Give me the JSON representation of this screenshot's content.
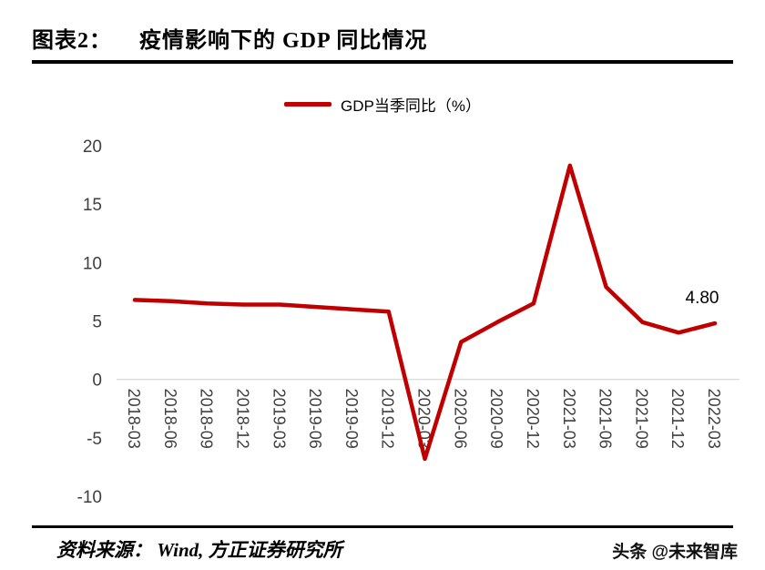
{
  "header": {
    "label": "图表2：",
    "title": "疫情影响下的 GDP 同比情况"
  },
  "legend": {
    "label": "GDP当季同比（%）"
  },
  "chart_data": {
    "type": "line",
    "title": "疫情影响下的 GDP 同比情况",
    "categories": [
      "2018-03",
      "2018-06",
      "2018-09",
      "2018-12",
      "2019-03",
      "2019-06",
      "2019-09",
      "2019-12",
      "2020-03",
      "2020-06",
      "2020-09",
      "2020-12",
      "2021-03",
      "2021-06",
      "2021-09",
      "2021-12",
      "2022-03"
    ],
    "series": [
      {
        "name": "GDP当季同比（%）",
        "values": [
          6.8,
          6.7,
          6.5,
          6.4,
          6.4,
          6.2,
          6.0,
          5.8,
          -6.8,
          3.2,
          4.9,
          6.5,
          18.3,
          7.9,
          4.9,
          4.0,
          4.8
        ]
      }
    ],
    "ylim": [
      -10,
      20
    ],
    "yticks": [
      20,
      15,
      10,
      5,
      0,
      -5,
      -10
    ],
    "xlabel": "",
    "ylabel": "",
    "grid": "zero-baseline-only",
    "legend_position": "top-center",
    "x_tick_rotation": 90,
    "annotations": [
      {
        "text": "4.80",
        "category": "2022-03",
        "value": 4.8
      }
    ]
  },
  "footer": {
    "source": "资料来源： Wind, 方正证券研究所",
    "watermark": "头条 @未来智库"
  },
  "colors": {
    "line": "#C00000",
    "axis_text": "#3f3f3f",
    "zero_line": "#D6D6D6",
    "rule": "#000000",
    "annotation_text": "#000000"
  }
}
